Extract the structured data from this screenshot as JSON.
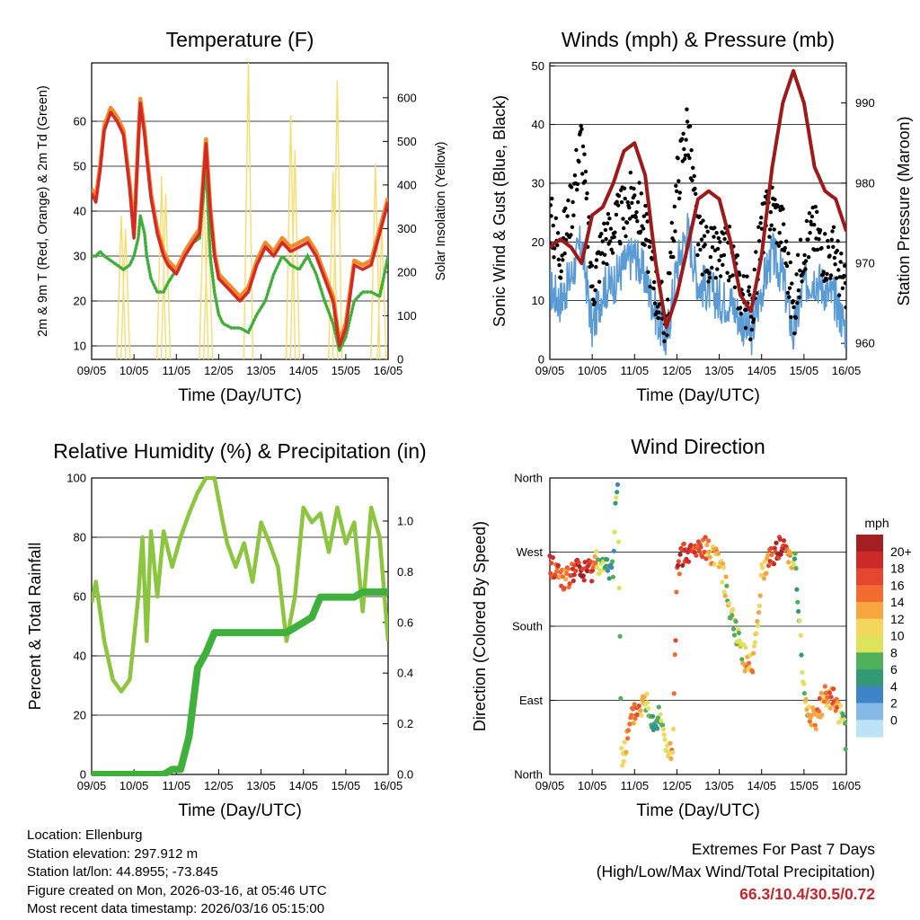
{
  "colors": {
    "temp_red": "#d42a23",
    "temp_orange": "#f08a2a",
    "dewpoint_green": "#3fae3a",
    "solar_yellow": "#f7dc6f",
    "wind_blue": "#5b9bd5",
    "gust_black": "#000000",
    "pressure_maroon": "#9e1a1a",
    "rh_light_green": "#8cc63f",
    "precip_green": "#3fb03c",
    "extremes_red": "#c8242b"
  },
  "x_ticks": [
    "09/05",
    "10/05",
    "11/05",
    "12/05",
    "13/05",
    "14/05",
    "15/05",
    "16/05"
  ],
  "x_label": "Time (Day/UTC)",
  "chart_data": [
    {
      "id": "temperature",
      "type": "line",
      "title": "Temperature (F)",
      "xlabel": "Time (Day/UTC)",
      "ylabel": "2m & 9m T (Red, Orange) & 2m Td (Green)",
      "y2label": "Solar Insolation (Yellow)",
      "ylim": [
        7,
        73
      ],
      "y_ticks": [
        10,
        20,
        30,
        40,
        50,
        60
      ],
      "y2lim": [
        0,
        680
      ],
      "y2_ticks": [
        0,
        100,
        200,
        300,
        400,
        500,
        600
      ],
      "grid": true,
      "x_days": [
        0,
        0.1,
        0.2,
        0.3,
        0.45,
        0.6,
        0.75,
        0.9,
        1.0,
        1.1,
        1.15,
        1.25,
        1.3,
        1.4,
        1.55,
        1.7,
        1.8,
        2.0,
        2.2,
        2.4,
        2.55,
        2.7,
        2.8,
        2.9,
        3.0,
        3.1,
        3.3,
        3.5,
        3.7,
        3.9,
        4.1,
        4.3,
        4.5,
        4.7,
        4.9,
        5.1,
        5.3,
        5.5,
        5.7,
        5.85,
        6.0,
        6.2,
        6.4,
        6.6,
        6.8,
        7.0
      ],
      "series": [
        {
          "name": "2m T",
          "values": [
            44,
            42,
            49,
            58,
            62,
            60,
            57,
            45,
            34,
            55,
            64,
            57,
            52,
            43,
            35,
            30,
            28,
            26,
            30,
            33,
            35,
            55,
            40,
            30,
            25,
            24,
            22,
            20,
            22,
            28,
            32,
            30,
            33,
            31,
            32,
            33,
            30,
            25,
            20,
            10,
            14,
            28,
            27,
            28,
            35,
            42
          ]
        },
        {
          "name": "9m T",
          "values": [
            45,
            43,
            50,
            59,
            63,
            61,
            58,
            46,
            35,
            56,
            65,
            58,
            53,
            44,
            36,
            31,
            29,
            27,
            31,
            34,
            36,
            56,
            41,
            31,
            26,
            25,
            23,
            21,
            23,
            29,
            33,
            31,
            34,
            32,
            33,
            34,
            31,
            26,
            21,
            11,
            15,
            29,
            28,
            29,
            36,
            43
          ]
        },
        {
          "name": "2m Td",
          "values": [
            30,
            30,
            31,
            30,
            29,
            28,
            27,
            28,
            30,
            34,
            39,
            35,
            30,
            25,
            22,
            22,
            24,
            27,
            30,
            33,
            34,
            50,
            30,
            22,
            17,
            15,
            14,
            14,
            13,
            17,
            20,
            26,
            30,
            28,
            27,
            30,
            26,
            20,
            15,
            9,
            12,
            20,
            22,
            22,
            21,
            30
          ]
        }
      ],
      "solar_peaks": [
        {
          "day": 0.7,
          "peak": 330
        },
        {
          "day": 0.8,
          "peak": 300
        },
        {
          "day": 1.65,
          "peak": 420
        },
        {
          "day": 1.75,
          "peak": 380
        },
        {
          "day": 2.65,
          "peak": 390
        },
        {
          "day": 2.75,
          "peak": 350
        },
        {
          "day": 3.7,
          "peak": 680
        },
        {
          "day": 4.7,
          "peak": 560
        },
        {
          "day": 4.8,
          "peak": 480
        },
        {
          "day": 5.7,
          "peak": 430
        },
        {
          "day": 5.8,
          "peak": 640
        },
        {
          "day": 6.7,
          "peak": 450
        },
        {
          "day": 6.85,
          "peak": 300
        }
      ]
    },
    {
      "id": "winds",
      "type": "scatter",
      "title": "Winds (mph) & Pressure (mb)",
      "xlabel": "Time (Day/UTC)",
      "ylabel": "Sonic Wind & Gust (Blue, Black)",
      "y2label": "Station Pressure (Maroon)",
      "ylim": [
        0,
        50.5
      ],
      "y_ticks": [
        0,
        10,
        20,
        30,
        40,
        50
      ],
      "y2lim": [
        958,
        995
      ],
      "y2_ticks": [
        960,
        970,
        980,
        990
      ],
      "grid": true,
      "x_days": [
        0,
        0.25,
        0.5,
        0.75,
        1.0,
        1.25,
        1.5,
        1.75,
        2.0,
        2.25,
        2.5,
        2.75,
        3.0,
        3.25,
        3.5,
        3.75,
        4.0,
        4.25,
        4.5,
        4.75,
        5.0,
        5.25,
        5.5,
        5.75,
        6.0,
        6.25,
        6.5,
        6.75,
        7.0
      ],
      "wind": [
        12,
        10,
        14,
        20,
        5,
        12,
        13,
        16,
        18,
        14,
        8,
        3,
        16,
        22,
        13,
        12,
        10,
        10,
        7,
        4,
        12,
        18,
        14,
        4,
        13,
        14,
        12,
        10,
        5
      ],
      "gust": [
        24,
        18,
        26,
        38,
        12,
        20,
        22,
        25,
        28,
        22,
        12,
        6,
        30,
        40,
        20,
        18,
        17,
        18,
        12,
        8,
        22,
        26,
        22,
        8,
        20,
        22,
        18,
        18,
        10
      ],
      "pressure": [
        972,
        973,
        972,
        970,
        976,
        977,
        980,
        984,
        985,
        981,
        970,
        962,
        966,
        972,
        978,
        979,
        978,
        973,
        966,
        964,
        971,
        982,
        990,
        994,
        990,
        982,
        979,
        978,
        974
      ]
    },
    {
      "id": "humidity",
      "type": "line",
      "title": "Relative Humidity (%) & Precipitation (in)",
      "xlabel": "Time (Day/UTC)",
      "ylabel": "Percent & Total Rainfall",
      "ylim": [
        0,
        100
      ],
      "y_ticks": [
        0,
        20,
        40,
        60,
        80,
        100
      ],
      "y2lim": [
        0,
        1.17
      ],
      "y2_ticks": [
        "0.0",
        "0.2",
        "0.4",
        "0.6",
        "0.8",
        "1.0"
      ],
      "grid": true,
      "x_days": [
        0,
        0.1,
        0.3,
        0.5,
        0.7,
        0.9,
        1.1,
        1.2,
        1.3,
        1.4,
        1.55,
        1.7,
        1.9,
        2.1,
        2.3,
        2.5,
        2.7,
        2.9,
        3.1,
        3.2,
        3.4,
        3.6,
        3.8,
        4.0,
        4.2,
        4.4,
        4.6,
        4.8,
        5.0,
        5.2,
        5.4,
        5.6,
        5.8,
        6.0,
        6.2,
        6.4,
        6.6,
        6.8,
        7.0
      ],
      "series": [
        {
          "name": "Relative Humidity",
          "values": [
            58,
            65,
            45,
            32,
            28,
            32,
            60,
            80,
            45,
            82,
            60,
            82,
            70,
            80,
            88,
            95,
            100,
            100,
            85,
            78,
            70,
            78,
            65,
            85,
            78,
            70,
            45,
            60,
            90,
            85,
            88,
            75,
            90,
            78,
            85,
            55,
            90,
            80,
            45
          ]
        },
        {
          "name": "Total Precipitation",
          "values": [
            0.0,
            0.0,
            0.0,
            0.0,
            0.0,
            0.0,
            0.0,
            0.0,
            0.0,
            0.0,
            0.0,
            0.0,
            0.02,
            0.02,
            0.15,
            0.42,
            0.48,
            0.56,
            0.56,
            0.56,
            0.56,
            0.56,
            0.56,
            0.56,
            0.56,
            0.56,
            0.56,
            0.58,
            0.6,
            0.62,
            0.7,
            0.7,
            0.7,
            0.7,
            0.7,
            0.72,
            0.72,
            0.72,
            0.72
          ]
        }
      ]
    },
    {
      "id": "direction",
      "type": "scatter",
      "title": "Wind Direction",
      "xlabel": "Time (Day/UTC)",
      "ylabel": "Direction (Colored By Speed)",
      "y_tick_labels": [
        "North",
        "East",
        "South",
        "West",
        "North"
      ],
      "y_tick_degrees": [
        0,
        90,
        180,
        270,
        360
      ],
      "ylim": [
        0,
        360
      ],
      "x_days": [
        0.0,
        0.2,
        0.4,
        0.6,
        0.8,
        1.0,
        1.1,
        1.3,
        1.5,
        1.55,
        1.6,
        1.7,
        1.8,
        1.9,
        2.0,
        2.1,
        2.2,
        2.3,
        2.4,
        2.5,
        2.6,
        2.7,
        2.8,
        2.9,
        3.0,
        3.1,
        3.2,
        3.4,
        3.6,
        3.8,
        4.0,
        4.2,
        4.4,
        4.6,
        4.8,
        5.0,
        5.2,
        5.4,
        5.6,
        5.8,
        6.0,
        6.1,
        6.3,
        6.5,
        6.7,
        6.9,
        7.0
      ],
      "directions": [
        255,
        245,
        235,
        250,
        245,
        250,
        262,
        248,
        250,
        335,
        350,
        20,
        35,
        60,
        75,
        80,
        85,
        90,
        70,
        60,
        80,
        40,
        30,
        20,
        235,
        270,
        265,
        270,
        275,
        270,
        265,
        215,
        175,
        140,
        135,
        240,
        265,
        275,
        270,
        260,
        95,
        75,
        65,
        100,
        90,
        70,
        40
      ],
      "speeds": [
        16,
        15,
        14,
        18,
        19,
        17,
        10,
        5,
        3,
        6,
        5,
        8,
        10,
        12,
        14,
        13,
        10,
        8,
        5,
        4,
        6,
        8,
        10,
        12,
        16,
        18,
        17,
        16,
        14,
        12,
        10,
        9,
        8,
        10,
        12,
        8,
        16,
        18,
        16,
        6,
        8,
        10,
        14,
        12,
        16,
        8,
        6
      ],
      "colorbar": {
        "label": "mph",
        "labels": [
          "20+",
          "18",
          "16",
          "14",
          "12",
          "10",
          "8",
          "6",
          "4",
          "2",
          "0"
        ],
        "colors": [
          "#a31f22",
          "#cc2a27",
          "#e5472e",
          "#f26c30",
          "#f8a63f",
          "#f3d65e",
          "#dde35b",
          "#4fb05c",
          "#339a73",
          "#3d85c6",
          "#85b9e8",
          "#bfe3f6"
        ]
      }
    }
  ],
  "footer": {
    "location": "Location: Ellenburg",
    "elevation": "Station elevation: 297.912 m",
    "latlon": "Station lat/lon: 44.8955; -73.845",
    "created": "Figure created on Mon, 2026-03-16, at 05:46 UTC",
    "timestamp": "Most recent data timestamp: 2026/03/16 05:15:00"
  },
  "extremes": {
    "title": "Extremes For Past 7 Days",
    "subtitle": "(High/Low/Max Wind/Total Precipitation)",
    "values": "66.3/10.4/30.5/0.72"
  }
}
